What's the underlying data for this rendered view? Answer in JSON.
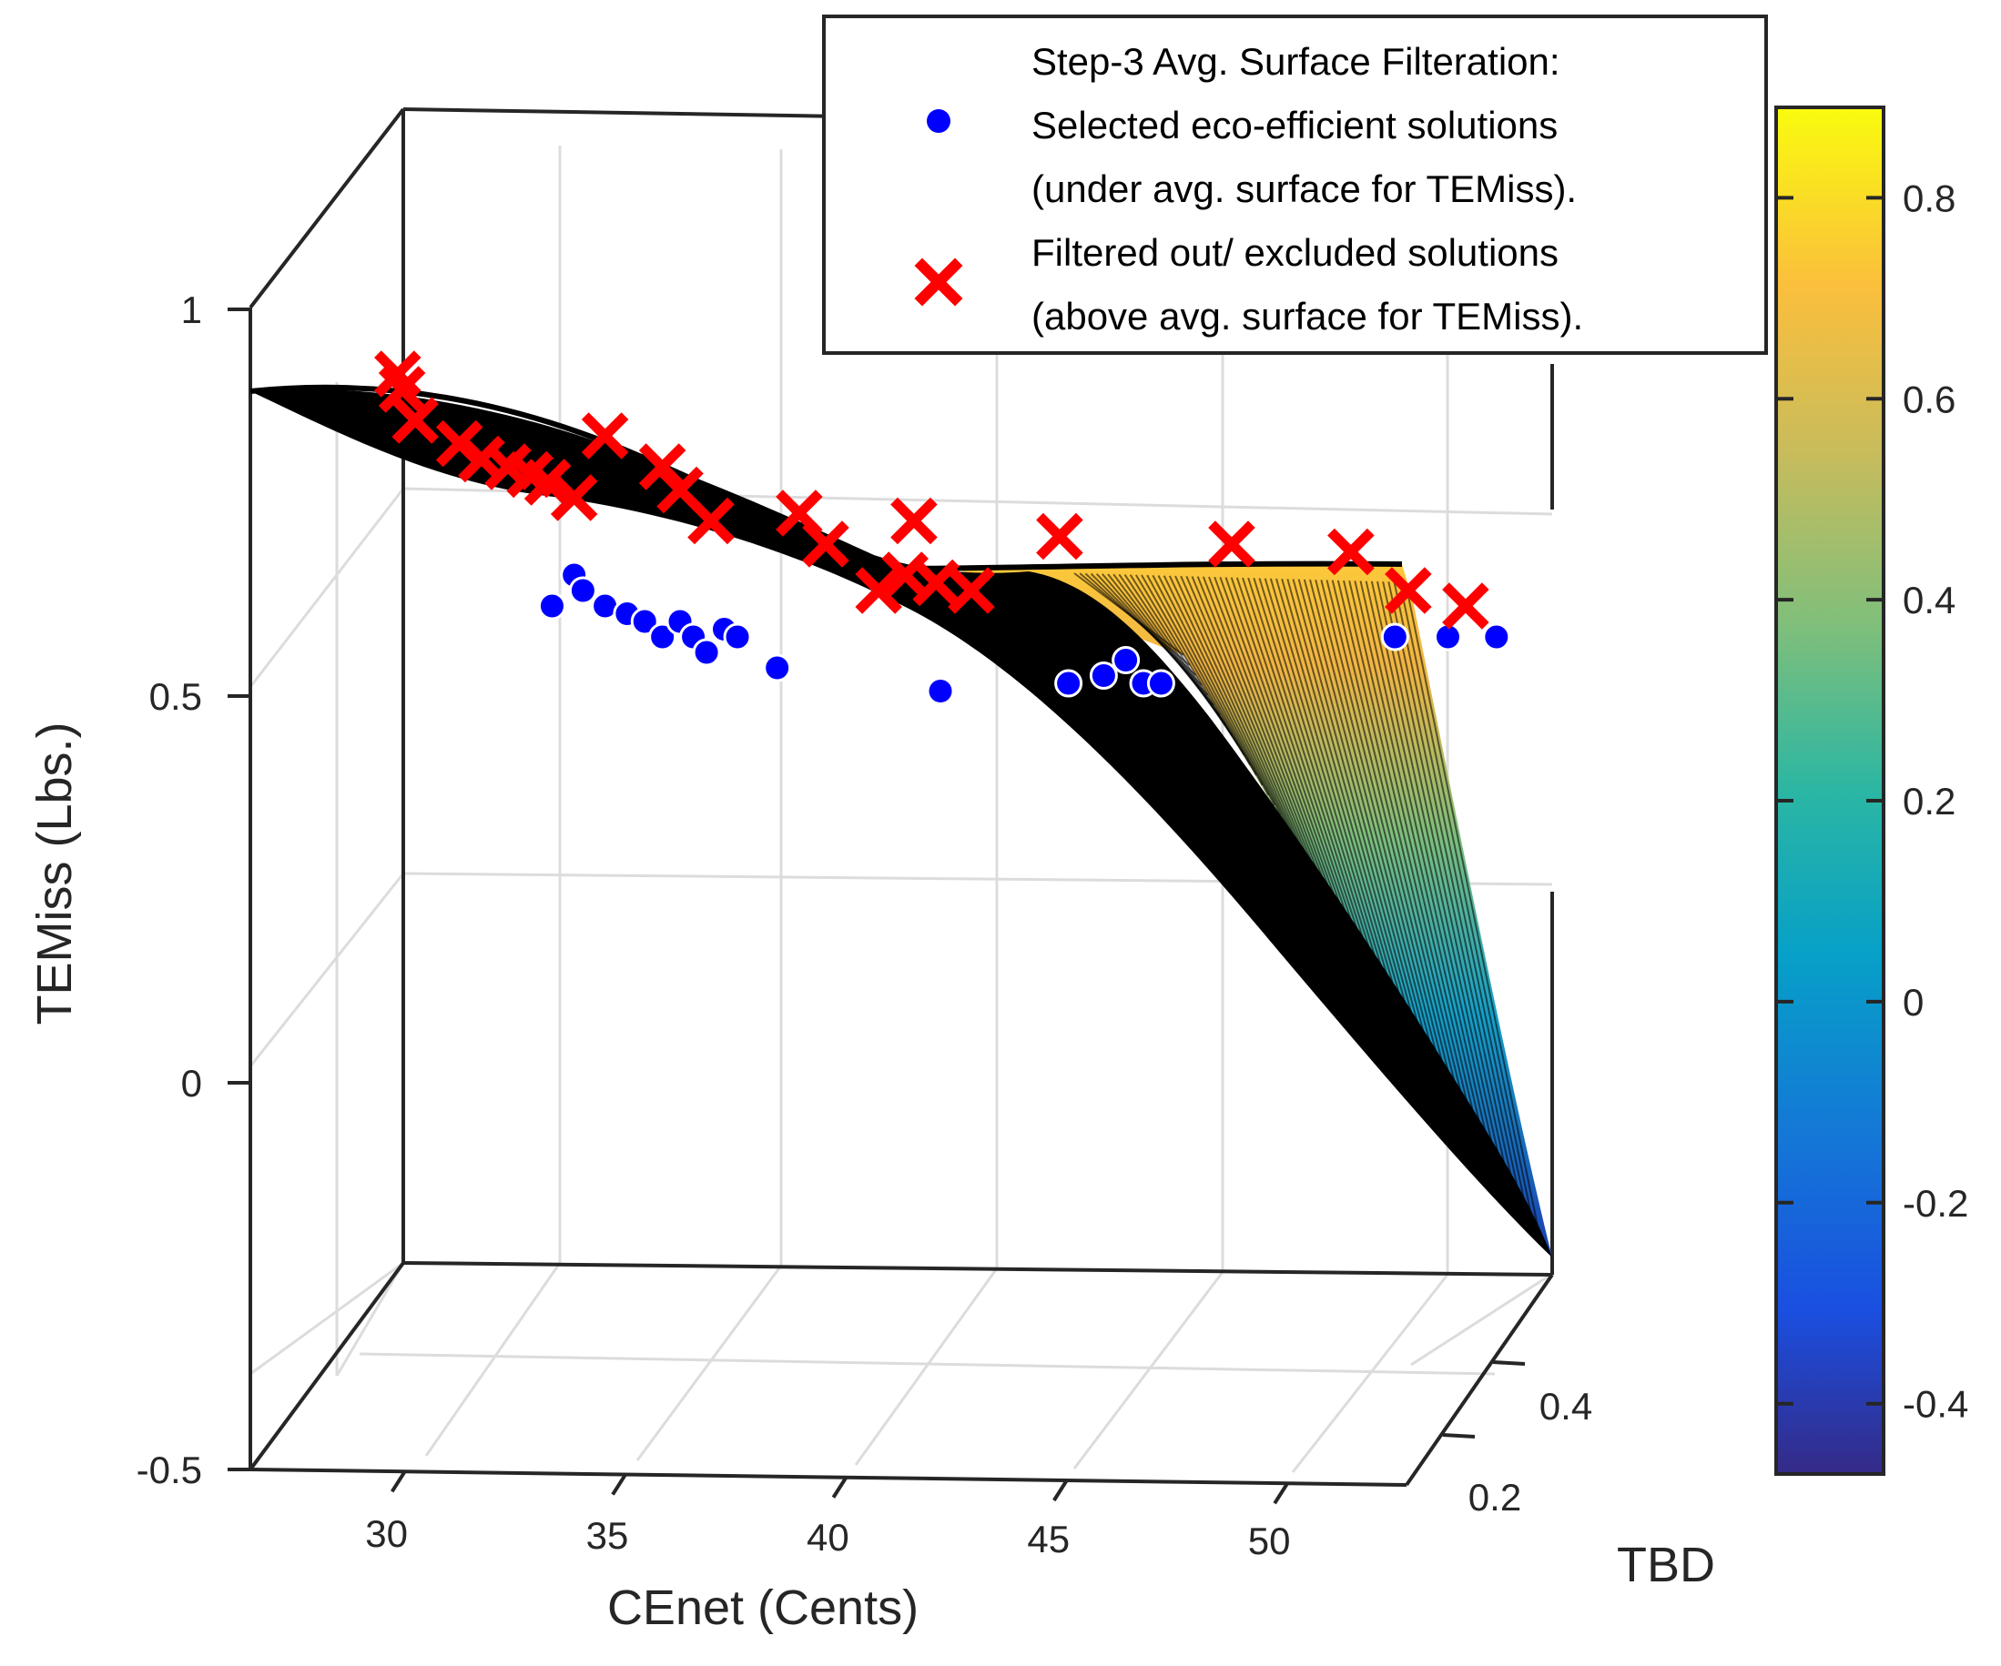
{
  "chart_data": {
    "type": "scatter",
    "subtype": "3d-surface-scatter",
    "xlabel": "CEnet (Cents)",
    "ylabel": "TBD",
    "zlabel": "TEMiss (Lbs.)",
    "x_ticks": [
      "30",
      "35",
      "40",
      "45",
      "50"
    ],
    "y_ticks": [
      "0.2",
      "0.4"
    ],
    "z_ticks": [
      "1",
      "0.5",
      "0",
      "-0.5"
    ],
    "colorbar_ticks": [
      "0.8",
      "0.6",
      "0.4",
      "0.2",
      "0",
      "-0.2",
      "-0.4"
    ],
    "colorbar_range": [
      -0.47,
      0.89
    ],
    "zlim": [
      -0.5,
      1
    ],
    "grid": true,
    "legend": {
      "placement": "top-right",
      "title": "Step-3 Avg. Surface Filteration:",
      "entries": [
        {
          "marker": "blue-dot",
          "line1": "Selected eco-efficient solutions",
          "line2": "(under avg. surface for TEMiss)."
        },
        {
          "marker": "red-x",
          "line1": "Filtered out/ excluded solutions",
          "line2": "(above  avg. surface for TEMiss)."
        }
      ]
    },
    "series": [
      {
        "name": "Selected eco-efficient solutions",
        "marker": "o",
        "color": "#0000ff",
        "points": [
          [
            32.1,
            0.64
          ],
          [
            32.6,
            0.68
          ],
          [
            32.8,
            0.66
          ],
          [
            33.3,
            0.64
          ],
          [
            33.8,
            0.63
          ],
          [
            34.2,
            0.62
          ],
          [
            34.6,
            0.6
          ],
          [
            35.0,
            0.62
          ],
          [
            35.3,
            0.6
          ],
          [
            35.6,
            0.58
          ],
          [
            36.0,
            0.61
          ],
          [
            36.3,
            0.6
          ],
          [
            37.2,
            0.56
          ],
          [
            40.9,
            0.53
          ],
          [
            43.8,
            0.54
          ],
          [
            44.6,
            0.55
          ],
          [
            45.1,
            0.57
          ],
          [
            45.5,
            0.54
          ],
          [
            45.9,
            0.54
          ],
          [
            51.2,
            0.6
          ],
          [
            52.4,
            0.6
          ],
          [
            53.5,
            0.6
          ]
        ]
      },
      {
        "name": "Filtered out/ excluded solutions",
        "marker": "x",
        "color": "#ff0000",
        "points": [
          [
            28.6,
            0.94
          ],
          [
            28.7,
            0.92
          ],
          [
            29.0,
            0.88
          ],
          [
            30.0,
            0.85
          ],
          [
            30.5,
            0.83
          ],
          [
            31.1,
            0.82
          ],
          [
            31.6,
            0.81
          ],
          [
            32.0,
            0.8
          ],
          [
            32.6,
            0.78
          ],
          [
            33.3,
            0.86
          ],
          [
            34.6,
            0.82
          ],
          [
            35.0,
            0.79
          ],
          [
            35.7,
            0.75
          ],
          [
            37.7,
            0.76
          ],
          [
            38.3,
            0.72
          ],
          [
            39.5,
            0.66
          ],
          [
            40.1,
            0.68
          ],
          [
            40.3,
            0.75
          ],
          [
            40.8,
            0.67
          ],
          [
            41.6,
            0.66
          ],
          [
            43.6,
            0.73
          ],
          [
            47.5,
            0.72
          ],
          [
            50.2,
            0.71
          ],
          [
            51.5,
            0.66
          ],
          [
            52.8,
            0.64
          ]
        ]
      }
    ]
  }
}
